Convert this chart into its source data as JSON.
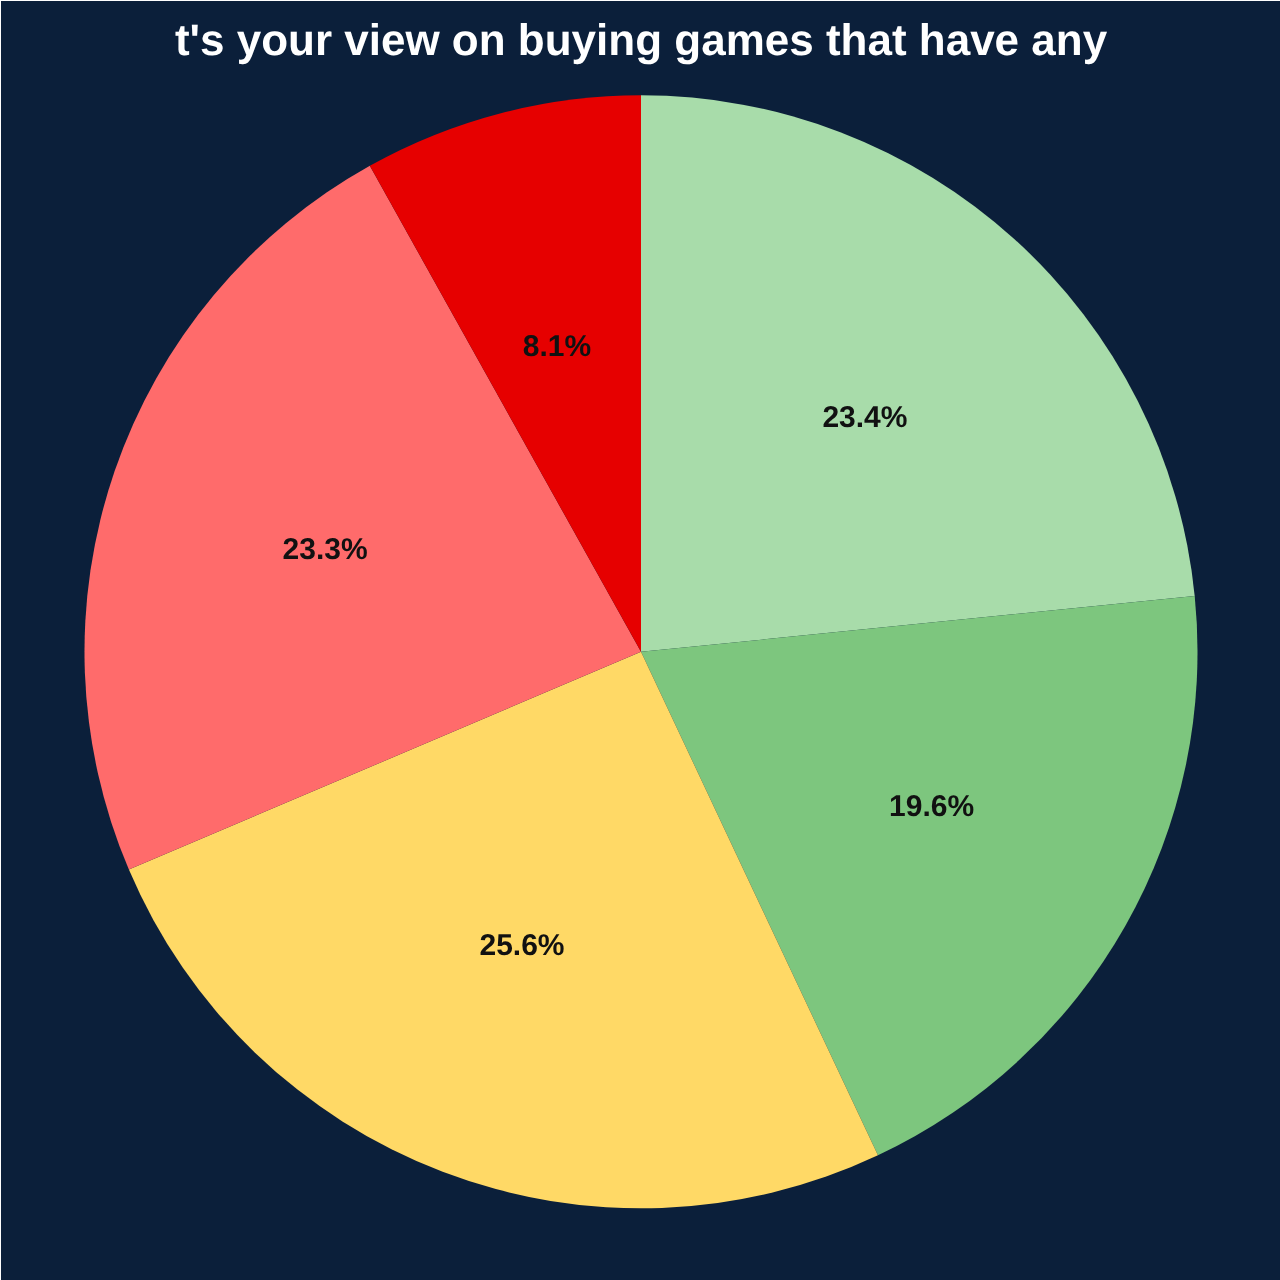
{
  "chart_data": {
    "type": "pie",
    "title": "t's your view on buying games that have any",
    "categories": [
      null,
      null,
      null,
      null,
      null
    ],
    "values": [
      23.4,
      19.6,
      25.6,
      23.3,
      8.1
    ],
    "colors": [
      "#a8dcaa",
      "#7dc67e",
      "#ffd966",
      "#ff6b6b",
      "#e60000"
    ],
    "value_labels": [
      "23.4%",
      "19.6%",
      "25.6%",
      "23.3%",
      "8.1%"
    ]
  }
}
